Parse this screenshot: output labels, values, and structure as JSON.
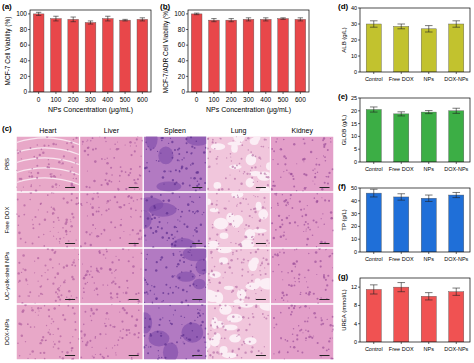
{
  "chart_data": [
    {
      "panel_label": "(a)",
      "type": "bar",
      "x_label": "NPs Concentration (μg/mL)",
      "y_label": "MCF-7 Cell Viability (%)",
      "categories": [
        "0",
        "100",
        "200",
        "300",
        "400",
        "500",
        "600"
      ],
      "values": [
        100,
        94,
        93,
        89,
        94,
        92,
        93
      ],
      "errors": [
        2,
        3,
        3,
        2,
        3,
        1,
        2
      ],
      "color": "#e8474a",
      "ylim": [
        0,
        105
      ],
      "yticks": [
        0,
        20,
        40,
        60,
        80,
        100
      ]
    },
    {
      "panel_label": "(b)",
      "type": "bar",
      "x_label": "NPs Concentration (μg/mL)",
      "y_label": "MCF-7/ADR Cell Viability (%)",
      "categories": [
        "0",
        "100",
        "200",
        "300",
        "400",
        "500",
        "600"
      ],
      "values": [
        100,
        92,
        92,
        93,
        93,
        94,
        93
      ],
      "errors": [
        1,
        2,
        2,
        2,
        2,
        1,
        2
      ],
      "color": "#e8474a",
      "ylim": [
        0,
        105
      ],
      "yticks": [
        0,
        20,
        40,
        60,
        80,
        100
      ]
    },
    {
      "panel_label": "(d)",
      "type": "bar",
      "y_label": "ALB (g/L)",
      "categories": [
        "Control",
        "Free DOX",
        "NPs",
        "DOX-NPs"
      ],
      "values": [
        30,
        28.5,
        27,
        30
      ],
      "errors": [
        2,
        1.5,
        2,
        2
      ],
      "color": "#c2c22e",
      "ylim": [
        0,
        40
      ],
      "yticks": [
        0,
        10,
        20,
        30,
        40
      ]
    },
    {
      "panel_label": "(e)",
      "type": "bar",
      "y_label": "GLOB (g/L)",
      "categories": [
        "Control",
        "Free DOX",
        "NPs",
        "DOX-NPs"
      ],
      "values": [
        20.5,
        18.8,
        19.5,
        20
      ],
      "errors": [
        1,
        0.8,
        0.6,
        1
      ],
      "color": "#3cae45",
      "ylim": [
        0,
        25
      ],
      "yticks": [
        0,
        5,
        10,
        15,
        20,
        25
      ]
    },
    {
      "panel_label": "(f)",
      "type": "bar",
      "y_label": "TP (g/L)",
      "categories": [
        "Control",
        "Free DOX",
        "NPs",
        "DOX-NPs"
      ],
      "values": [
        46,
        43,
        42,
        44.5
      ],
      "errors": [
        3,
        2.5,
        2.5,
        2
      ],
      "color": "#1f6fd8",
      "ylim": [
        0,
        50
      ],
      "yticks": [
        0,
        10,
        20,
        30,
        40,
        50
      ]
    },
    {
      "panel_label": "(g)",
      "type": "bar",
      "y_label": "UREA (mmol/L)",
      "categories": [
        "Control",
        "Free DOX",
        "NPs",
        "DOX-NPs"
      ],
      "values": [
        11.5,
        12,
        10,
        11
      ],
      "errors": [
        1,
        1,
        0.8,
        0.8
      ],
      "color": "#f05252",
      "ylim": [
        0,
        14
      ],
      "yticks": [
        0,
        4,
        8,
        12
      ]
    }
  ],
  "histology": {
    "panel_label": "(c)",
    "columns": [
      "Heart",
      "Liver",
      "Spleen",
      "Lung",
      "Kidney"
    ],
    "rows": [
      "PBS",
      "Free DOX",
      "UC-yolk-shell NPs",
      "DOX-NPs"
    ]
  }
}
